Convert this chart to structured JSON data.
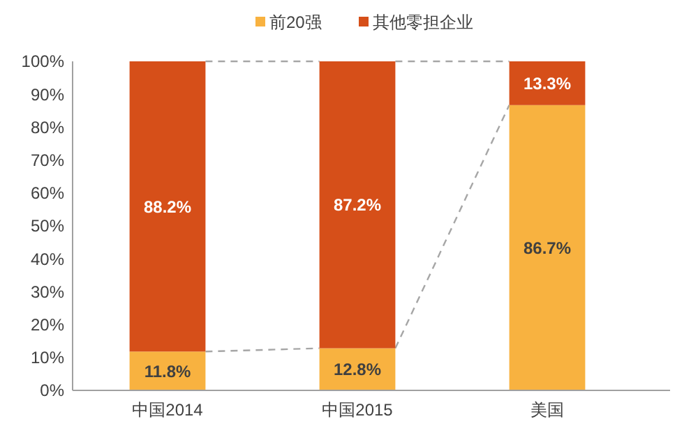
{
  "chart_data": {
    "type": "bar",
    "stacked": true,
    "categories": [
      "中国2014",
      "中国2015",
      "美国"
    ],
    "series": [
      {
        "name": "前20强",
        "color": "#f8b240",
        "values": [
          11.8,
          12.8,
          86.7
        ],
        "value_labels": [
          "11.8%",
          "12.8%",
          "86.7%"
        ]
      },
      {
        "name": "其他零担企业",
        "color": "#d64f19",
        "values": [
          88.2,
          87.2,
          13.3
        ],
        "value_labels": [
          "88.2%",
          "87.2%",
          "13.3%"
        ]
      }
    ],
    "ylim": [
      0,
      100
    ],
    "yticks": [
      {
        "value": 0,
        "label": "0%"
      },
      {
        "value": 10,
        "label": "10%"
      },
      {
        "value": 20,
        "label": "20%"
      },
      {
        "value": 30,
        "label": "30%"
      },
      {
        "value": 40,
        "label": "40%"
      },
      {
        "value": 50,
        "label": "50%"
      },
      {
        "value": 60,
        "label": "60%"
      },
      {
        "value": 70,
        "label": "70%"
      },
      {
        "value": 80,
        "label": "80%"
      },
      {
        "value": 90,
        "label": "90%"
      },
      {
        "value": 100,
        "label": "100%"
      }
    ],
    "grid": false,
    "legend": "top"
  }
}
